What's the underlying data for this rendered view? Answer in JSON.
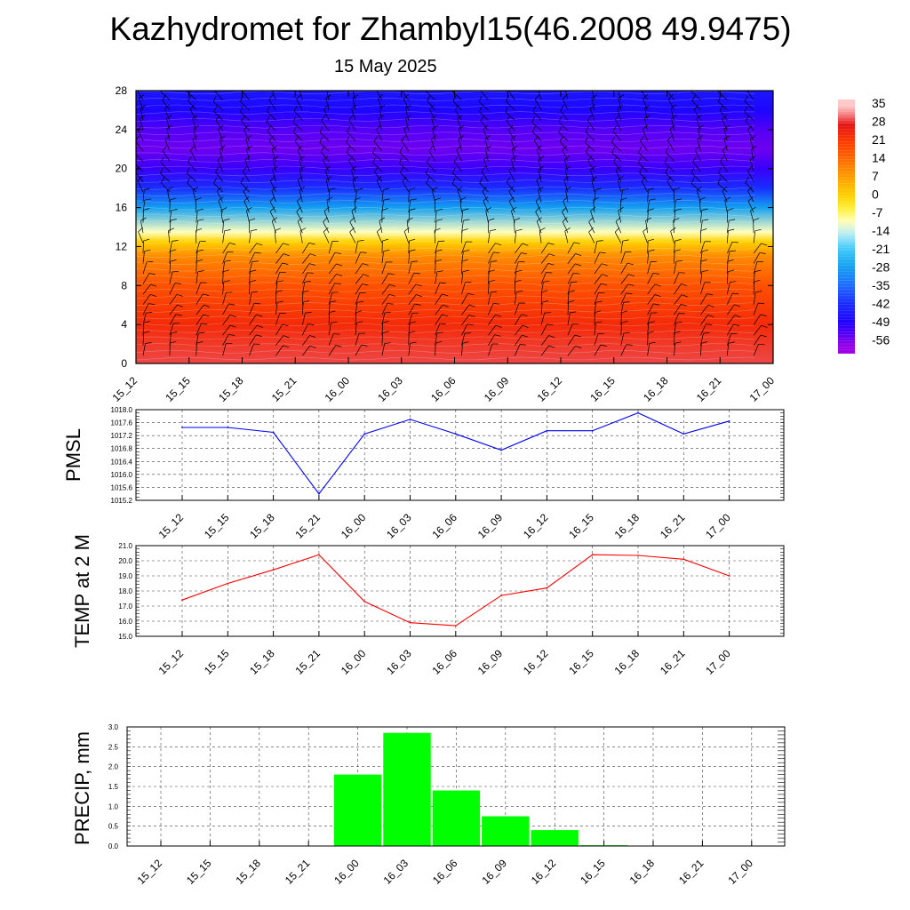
{
  "title": "Kazhydromet for Zhambyl15(46.2008 49.9475)",
  "subtitle": "15 May 2025",
  "time_labels": [
    "15_12",
    "15_15",
    "15_18",
    "15_21",
    "16_00",
    "16_03",
    "16_06",
    "16_09",
    "16_12",
    "16_15",
    "16_18",
    "16_21",
    "17_00"
  ],
  "chart_data": [
    {
      "type": "heatmap",
      "title": "Kazhydromet for Zhambyl15(46.2008 49.9475)",
      "subtitle": "15 May 2025",
      "x": [
        "15_12",
        "15_15",
        "15_18",
        "15_21",
        "16_00",
        "16_03",
        "16_06",
        "16_09",
        "16_12",
        "16_15",
        "16_18",
        "16_21",
        "17_00"
      ],
      "y_ticks": [
        0,
        4,
        8,
        12,
        16,
        20,
        24,
        28
      ],
      "ylim": [
        0,
        28
      ],
      "overlay": "wind barbs",
      "colorbar": {
        "labels": [
          "35",
          "28",
          "21",
          "14",
          "7",
          "0",
          "-7",
          "-14",
          "-21",
          "-28",
          "-35",
          "-42",
          "-49",
          "-56"
        ],
        "values": [
          35,
          28,
          21,
          14,
          7,
          0,
          -7,
          -14,
          -21,
          -28,
          -35,
          -42,
          -49,
          -56
        ]
      },
      "profile": {
        "levels": [
          0,
          4,
          8,
          11,
          12.5,
          13.5,
          16,
          18,
          20,
          22,
          24,
          26,
          28
        ],
        "temperature": [
          30,
          24,
          18,
          10,
          0,
          -10,
          -28,
          -42,
          -52,
          -56,
          -54,
          -49,
          -46
        ]
      }
    },
    {
      "type": "line",
      "ylabel": "PMSL",
      "categories": [
        "15_12",
        "15_15",
        "15_18",
        "15_21",
        "16_00",
        "16_03",
        "16_06",
        "16_09",
        "16_12",
        "16_15",
        "16_18",
        "16_21",
        "17_00"
      ],
      "series": [
        {
          "values": [
            1017.45,
            1017.45,
            1017.3,
            1015.4,
            1017.25,
            1017.7,
            1017.25,
            1016.75,
            1017.35,
            1017.35,
            1017.9,
            1017.25,
            1017.65
          ],
          "color": "#0000ff"
        }
      ],
      "ylim": [
        1015.2,
        1018.0
      ],
      "y_ticks": [
        "1015.2",
        "1015.6",
        "1016.0",
        "1016.4",
        "1016.8",
        "1017.2",
        "1017.6",
        "1018.0"
      ],
      "grid": true
    },
    {
      "type": "line",
      "ylabel": "TEMP at 2 M",
      "categories": [
        "15_12",
        "15_15",
        "15_18",
        "15_21",
        "16_00",
        "16_03",
        "16_06",
        "16_09",
        "16_12",
        "16_15",
        "16_18",
        "16_21",
        "17_00"
      ],
      "series": [
        {
          "values": [
            17.4,
            18.5,
            19.4,
            20.4,
            17.3,
            15.9,
            15.7,
            17.7,
            18.2,
            20.4,
            20.35,
            20.1,
            19.0
          ],
          "color": "#ff0000"
        }
      ],
      "ylim": [
        15.0,
        21.0
      ],
      "y_ticks": [
        "15.0",
        "16.0",
        "17.0",
        "18.0",
        "19.0",
        "20.0",
        "21.0"
      ],
      "grid": true
    },
    {
      "type": "bar",
      "ylabel": "PRECIP, mm",
      "categories": [
        "15_12",
        "15_15",
        "15_18",
        "15_21",
        "16_00",
        "16_03",
        "16_06",
        "16_09",
        "16_12",
        "16_15",
        "16_18",
        "16_21",
        "17_00"
      ],
      "values": [
        0,
        0,
        0,
        0,
        1.8,
        2.85,
        1.4,
        0.75,
        0.4,
        0.02,
        0,
        0,
        0
      ],
      "color": "#00ff00",
      "ylim": [
        0,
        3.0
      ],
      "y_ticks": [
        "0.0",
        "0.5",
        "1.0",
        "1.5",
        "2.0",
        "2.5",
        "3.0"
      ],
      "grid": true
    }
  ]
}
